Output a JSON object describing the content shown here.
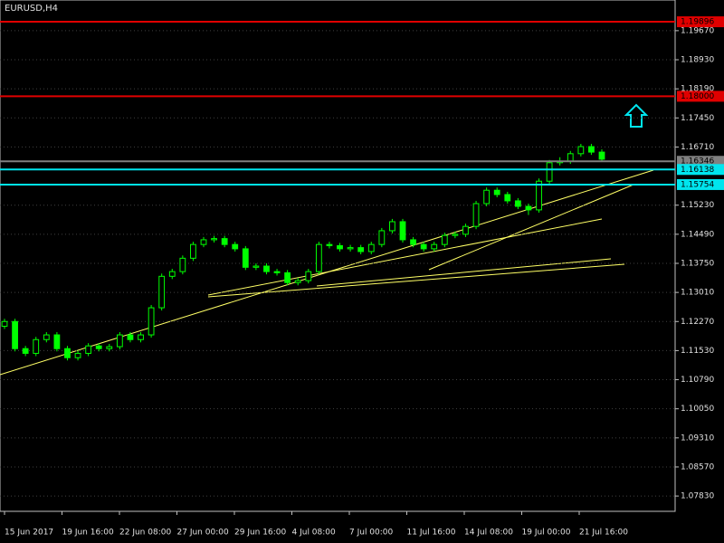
{
  "chart_data": {
    "type": "candlestick",
    "title": "EURUSD,H4",
    "color": "#00ff00",
    "grid": true,
    "ylim": [
      1.0751,
      1.2045
    ],
    "yticks": [
      {
        "value": 1.1967,
        "label": "1.19670"
      },
      {
        "value": 1.1893,
        "label": "1.18930"
      },
      {
        "value": 1.1819,
        "label": "1.18190"
      },
      {
        "value": 1.1745,
        "label": "1.17450"
      },
      {
        "value": 1.1671,
        "label": "1.16710"
      },
      {
        "value": 1.1523,
        "label": "1.15230"
      },
      {
        "value": 1.1449,
        "label": "1.14490"
      },
      {
        "value": 1.1375,
        "label": "1.13750"
      },
      {
        "value": 1.1301,
        "label": "1.13010"
      },
      {
        "value": 1.1227,
        "label": "1.12270"
      },
      {
        "value": 1.1153,
        "label": "1.11530"
      },
      {
        "value": 1.1079,
        "label": "1.10790"
      },
      {
        "value": 1.1005,
        "label": "1.10050"
      },
      {
        "value": 1.0931,
        "label": "1.09310"
      },
      {
        "value": 1.0857,
        "label": "1.08570"
      },
      {
        "value": 1.0783,
        "label": "1.07830"
      }
    ],
    "x_labels": [
      "15 Jun 2017",
      "19 Jun 16:00",
      "22 Jun 08:00",
      "27 Jun 00:00",
      "29 Jun 16:00",
      "4 Jul 08:00",
      "7 Jul 00:00",
      "11 Jul 16:00",
      "14 Jul 08:00",
      "19 Jul 00:00",
      "21 Jul 16:00"
    ],
    "levels": [
      {
        "value": 1.19896,
        "label": "1.19896",
        "color": "#e00000"
      },
      {
        "value": 1.18,
        "label": "1.18000",
        "color": "#e00000"
      },
      {
        "value": 1.16346,
        "label": "1.16346",
        "color": "#808080"
      },
      {
        "value": 1.16138,
        "label": "1.16138",
        "color": "#00e5ee"
      },
      {
        "value": 1.15754,
        "label": "1.15754",
        "color": "#00e5ee"
      }
    ],
    "open": [
      1.1215,
      1.1227,
      1.1158,
      1.1146,
      1.1181,
      1.1193,
      1.1158,
      1.1135,
      1.1146,
      1.1165,
      1.1158,
      1.1163,
      1.1193,
      1.1181,
      1.1193,
      1.1262,
      1.1342,
      1.1354,
      1.1388,
      1.1423,
      1.1435,
      1.1438,
      1.1423,
      1.1412,
      1.1365,
      1.1368,
      1.1354,
      1.1351,
      1.1326,
      1.1331,
      1.1354,
      1.1423,
      1.142,
      1.1412,
      1.1415,
      1.1405,
      1.1423,
      1.1458,
      1.1481,
      1.1435,
      1.1423,
      1.1412,
      1.1423,
      1.1446,
      1.1449,
      1.1469,
      1.1527,
      1.1561,
      1.155,
      1.1534,
      1.152,
      1.1511,
      1.1584,
      1.1631,
      1.1635,
      1.1654,
      1.1672,
      1.1658
    ],
    "high": [
      1.1234,
      1.1234,
      1.1165,
      1.1188,
      1.12,
      1.12,
      1.1165,
      1.1153,
      1.1172,
      1.1172,
      1.117,
      1.12,
      1.12,
      1.12,
      1.1269,
      1.1349,
      1.1361,
      1.1395,
      1.143,
      1.1442,
      1.1445,
      1.1445,
      1.143,
      1.1419,
      1.1375,
      1.1375,
      1.1361,
      1.1358,
      1.1338,
      1.1361,
      1.143,
      1.143,
      1.1427,
      1.1422,
      1.1422,
      1.143,
      1.1465,
      1.1488,
      1.1488,
      1.1442,
      1.143,
      1.143,
      1.1453,
      1.1456,
      1.1476,
      1.1534,
      1.1568,
      1.1568,
      1.1557,
      1.1541,
      1.1527,
      1.1591,
      1.1638,
      1.1645,
      1.1661,
      1.1679,
      1.1679,
      1.1665
    ],
    "low": [
      1.1208,
      1.1151,
      1.1139,
      1.1139,
      1.1174,
      1.1151,
      1.1128,
      1.1128,
      1.1139,
      1.1151,
      1.1151,
      1.1156,
      1.1174,
      1.1174,
      1.1186,
      1.1255,
      1.1335,
      1.1347,
      1.1381,
      1.1416,
      1.1428,
      1.1416,
      1.1405,
      1.1358,
      1.1358,
      1.1347,
      1.1344,
      1.1319,
      1.1319,
      1.1324,
      1.1347,
      1.1413,
      1.1405,
      1.1405,
      1.1398,
      1.1398,
      1.1416,
      1.1451,
      1.1428,
      1.1416,
      1.1405,
      1.1405,
      1.1416,
      1.1439,
      1.1442,
      1.1462,
      1.152,
      1.1543,
      1.1527,
      1.1513,
      1.1498,
      1.1504,
      1.1577,
      1.1624,
      1.1628,
      1.1647,
      1.1651,
      1.1633
    ],
    "close": [
      1.1227,
      1.1158,
      1.1146,
      1.1181,
      1.1193,
      1.1158,
      1.1135,
      1.1146,
      1.1165,
      1.1158,
      1.1163,
      1.1193,
      1.1181,
      1.1193,
      1.1262,
      1.1342,
      1.1354,
      1.1388,
      1.1423,
      1.1435,
      1.1438,
      1.1423,
      1.1412,
      1.1365,
      1.1368,
      1.1354,
      1.1351,
      1.1326,
      1.1331,
      1.1354,
      1.1423,
      1.142,
      1.1412,
      1.1415,
      1.1405,
      1.1423,
      1.1458,
      1.1481,
      1.1435,
      1.1423,
      1.1412,
      1.1423,
      1.1446,
      1.1449,
      1.1469,
      1.1527,
      1.1561,
      1.155,
      1.1534,
      1.152,
      1.1511,
      1.1584,
      1.1631,
      1.1635,
      1.1654,
      1.1672,
      1.1658,
      1.164
    ]
  }
}
